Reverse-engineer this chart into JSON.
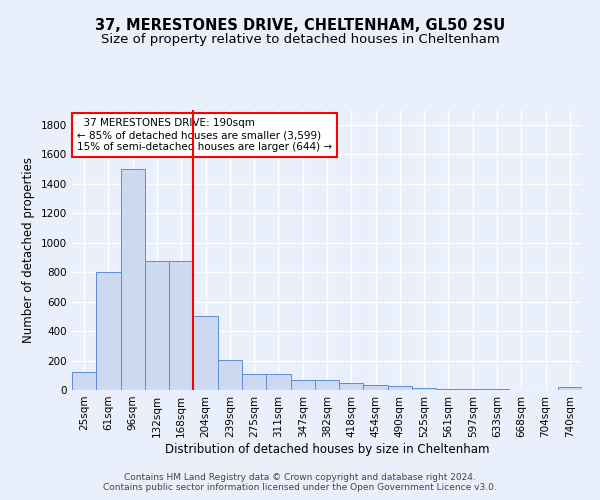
{
  "title": "37, MERESTONES DRIVE, CHELTENHAM, GL50 2SU",
  "subtitle": "Size of property relative to detached houses in Cheltenham",
  "xlabel": "Distribution of detached houses by size in Cheltenham",
  "ylabel": "Number of detached properties",
  "categories": [
    "25sqm",
    "61sqm",
    "96sqm",
    "132sqm",
    "168sqm",
    "204sqm",
    "239sqm",
    "275sqm",
    "311sqm",
    "347sqm",
    "382sqm",
    "418sqm",
    "454sqm",
    "490sqm",
    "525sqm",
    "561sqm",
    "597sqm",
    "633sqm",
    "668sqm",
    "704sqm",
    "740sqm"
  ],
  "values": [
    125,
    800,
    1500,
    875,
    875,
    500,
    205,
    110,
    110,
    70,
    65,
    45,
    35,
    30,
    15,
    10,
    8,
    5,
    3,
    2,
    20
  ],
  "bar_color": "#ccd9f0",
  "bar_edgecolor": "#5b8dd9",
  "vline_x_index": 4.5,
  "vline_color": "red",
  "annotation_text": "  37 MERESTONES DRIVE: 190sqm  \n← 85% of detached houses are smaller (3,599)\n15% of semi-detached houses are larger (644) →",
  "annotation_box_edgecolor": "red",
  "annotation_box_facecolor": "white",
  "ylim": [
    0,
    1900
  ],
  "yticks": [
    0,
    200,
    400,
    600,
    800,
    1000,
    1200,
    1400,
    1600,
    1800
  ],
  "background_color": "#eaf0fb",
  "grid_color": "white",
  "footer": "Contains HM Land Registry data © Crown copyright and database right 2024.\nContains public sector information licensed under the Open Government Licence v3.0.",
  "title_fontsize": 10.5,
  "subtitle_fontsize": 9.5,
  "xlabel_fontsize": 8.5,
  "ylabel_fontsize": 8.5,
  "tick_fontsize": 7.5,
  "footer_fontsize": 6.5,
  "annotation_fontsize": 7.5
}
